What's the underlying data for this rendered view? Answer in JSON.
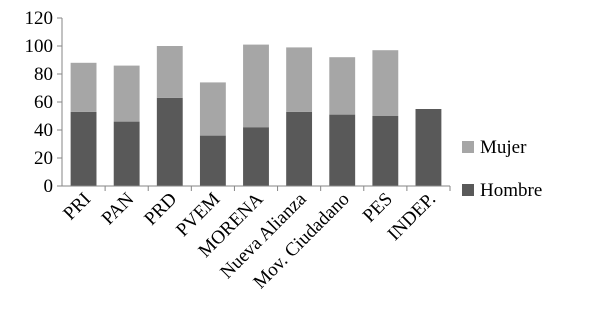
{
  "chart_data": {
    "type": "bar",
    "stacked": true,
    "title": "",
    "xlabel": "",
    "ylabel": "",
    "ylim": [
      0,
      120
    ],
    "yticks": [
      0,
      20,
      40,
      60,
      80,
      100,
      120
    ],
    "grid": false,
    "legend_position": "right",
    "categories": [
      "PRI",
      "PAN",
      "PRD",
      "PVEM",
      "MORENA",
      "Nueva Alianza",
      "Mov. Ciudadano",
      "PES",
      "INDEP."
    ],
    "series": [
      {
        "name": "Hombre",
        "color": "#595959",
        "values": [
          53,
          46,
          63,
          36,
          42,
          53,
          51,
          50,
          55
        ]
      },
      {
        "name": "Mujer",
        "color": "#a6a6a6",
        "values": [
          35,
          40,
          37,
          38,
          59,
          46,
          41,
          47,
          0
        ]
      }
    ],
    "legend_order": [
      "Mujer",
      "Hombre"
    ]
  }
}
